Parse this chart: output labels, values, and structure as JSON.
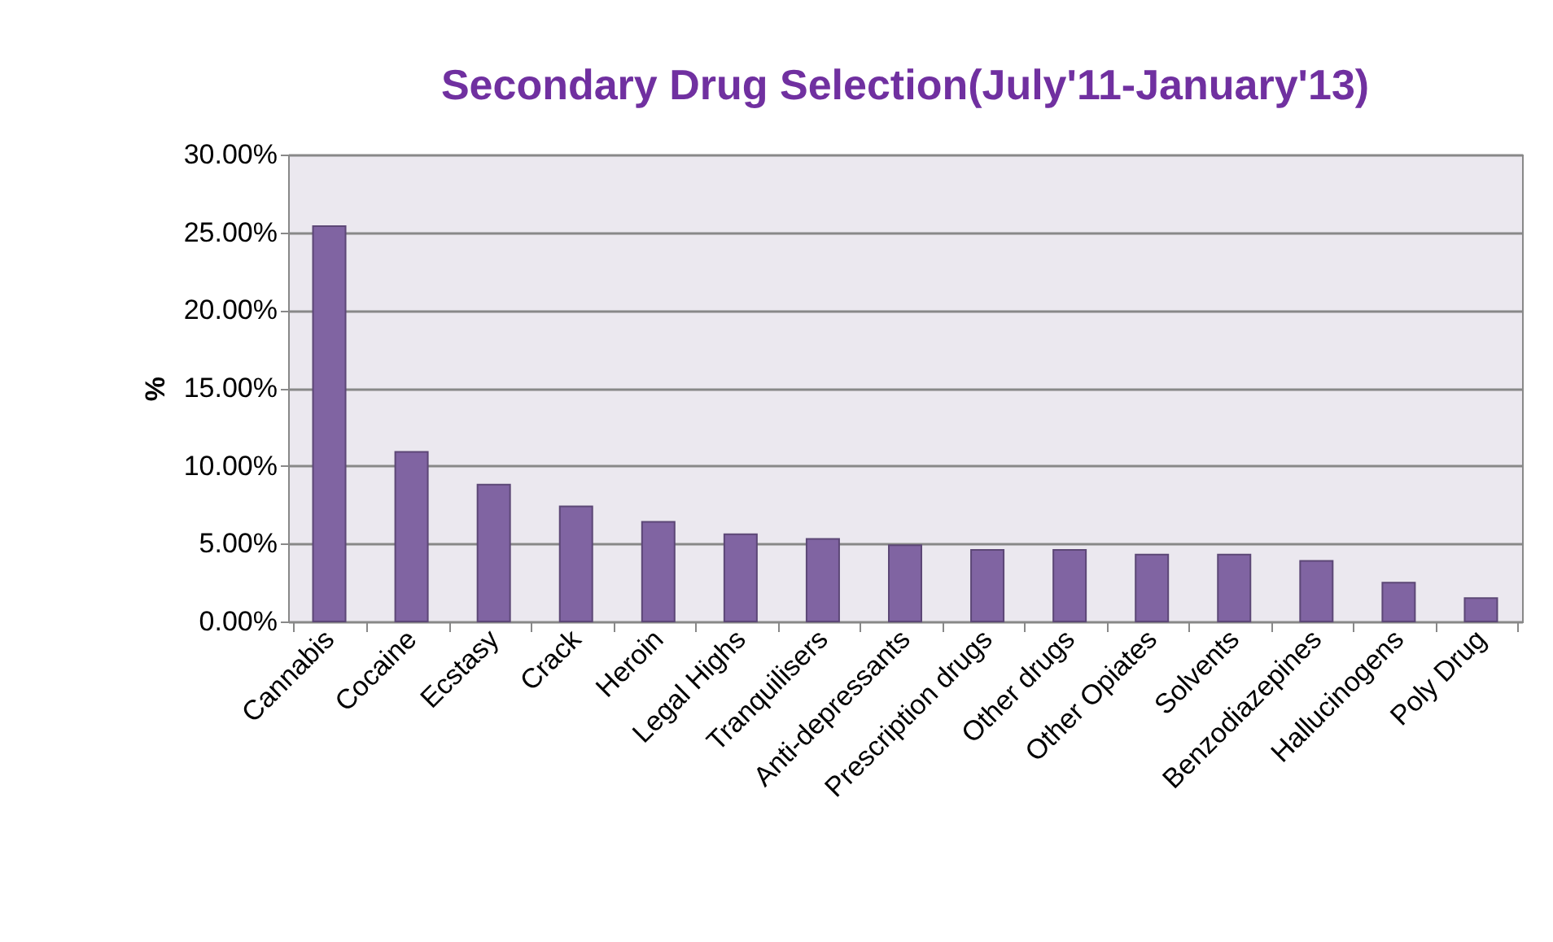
{
  "chart_data": {
    "type": "bar",
    "title": "Secondary Drug Selection(July'11-January'13)",
    "ylabel": "%",
    "categories": [
      "Cannabis",
      "Cocaine",
      "Ecstasy",
      "Crack",
      "Heroin",
      "Legal Highs",
      "Tranquilisers",
      "Anti-depressants",
      "Prescription drugs",
      "Other drugs",
      "Other Opiates",
      "Solvents",
      "Benzodiazepines",
      "Hallucinogens",
      "Poly Drug"
    ],
    "values": [
      25.4,
      10.9,
      8.8,
      7.4,
      6.4,
      5.6,
      5.3,
      4.9,
      4.6,
      4.6,
      4.3,
      4.3,
      3.9,
      2.5,
      1.5
    ],
    "color": "#8064a2",
    "ylim": [
      0,
      30
    ],
    "yticks": [
      {
        "value": 0,
        "label": "0.00%"
      },
      {
        "value": 5,
        "label": "5.00%"
      },
      {
        "value": 10,
        "label": "10.00%"
      },
      {
        "value": 15,
        "label": "15.00%"
      },
      {
        "value": 20,
        "label": "20.00%"
      },
      {
        "value": 25,
        "label": "25.00%"
      },
      {
        "value": 30,
        "label": "30.00%"
      }
    ],
    "grid": "y"
  }
}
